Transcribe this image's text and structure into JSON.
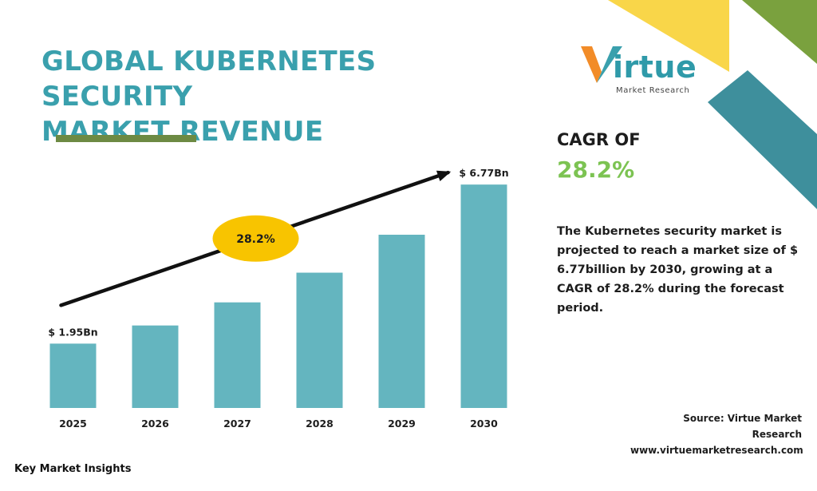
{
  "title_line1": "GLOBAL KUBERNETES SECURITY",
  "title_line2": "MARKET REVENUE",
  "logo": {
    "word": "irtue",
    "subtitle": "Market Research"
  },
  "cagr": {
    "label": "CAGR OF",
    "value": "28.2%"
  },
  "description": "The Kubernetes security market is projected to reach a market size of $ 6.77billion by 2030, growing at a CAGR of 28.2% during the forecast period.",
  "source": {
    "line1": "Source: Virtue Market Research",
    "line2": "www.virtuemarketresearch.com"
  },
  "footer": "Key Market Insights",
  "colors": {
    "title": "#3aa0ad",
    "bar": "#64b5bf",
    "cagr_value": "#7cc352",
    "badge": "#f8c400",
    "underline": "#6d8a43",
    "deco_yellow": "#f9d649",
    "deco_green": "#7aa13e",
    "deco_teal": "#3e8f9c",
    "logo_orange": "#f28c28"
  },
  "chart_data": {
    "type": "bar",
    "categories": [
      "2025",
      "2026",
      "2027",
      "2028",
      "2029",
      "2030"
    ],
    "values": [
      1.95,
      2.5,
      3.2,
      4.1,
      5.25,
      6.77
    ],
    "data_labels": [
      {
        "index": 0,
        "text": "$ 1.95Bn"
      },
      {
        "index": 5,
        "text": "$ 6.77Bn"
      }
    ],
    "trend_badge": "28.2%",
    "ylim": [
      0,
      7.5
    ],
    "title": "",
    "xlabel": "",
    "ylabel": "",
    "grid": false
  }
}
